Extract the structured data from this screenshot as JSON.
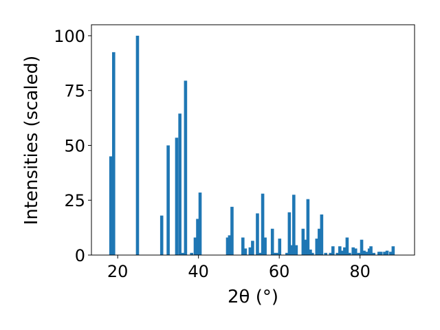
{
  "chart_data": {
    "type": "bar",
    "xlabel": "2θ (°)",
    "ylabel": "Intensities (scaled)",
    "xlim": [
      13.5,
      93.5
    ],
    "ylim": [
      0,
      105
    ],
    "xticks": [
      20,
      40,
      60,
      80
    ],
    "yticks": [
      0,
      25,
      50,
      75,
      100
    ],
    "bar_color": "#1f77b4",
    "grid": false,
    "bars": [
      {
        "x": 18.3,
        "y": 45
      },
      {
        "x": 19.0,
        "y": 92.5
      },
      {
        "x": 24.9,
        "y": 100
      },
      {
        "x": 30.9,
        "y": 18
      },
      {
        "x": 32.5,
        "y": 50
      },
      {
        "x": 34.6,
        "y": 53.5
      },
      {
        "x": 35.4,
        "y": 64.5
      },
      {
        "x": 36.1,
        "y": 1
      },
      {
        "x": 36.8,
        "y": 79.5
      },
      {
        "x": 38.3,
        "y": 1
      },
      {
        "x": 39.2,
        "y": 8
      },
      {
        "x": 39.8,
        "y": 16.5
      },
      {
        "x": 40.4,
        "y": 28.5
      },
      {
        "x": 47.2,
        "y": 8
      },
      {
        "x": 47.7,
        "y": 9
      },
      {
        "x": 48.3,
        "y": 22
      },
      {
        "x": 51.0,
        "y": 8
      },
      {
        "x": 51.6,
        "y": 3
      },
      {
        "x": 52.8,
        "y": 3.5
      },
      {
        "x": 53.4,
        "y": 6.5
      },
      {
        "x": 54.6,
        "y": 19
      },
      {
        "x": 55.3,
        "y": 1
      },
      {
        "x": 55.9,
        "y": 28
      },
      {
        "x": 56.5,
        "y": 8
      },
      {
        "x": 58.3,
        "y": 12
      },
      {
        "x": 58.9,
        "y": 1
      },
      {
        "x": 59.5,
        "y": 1
      },
      {
        "x": 60.1,
        "y": 7.5
      },
      {
        "x": 61.9,
        "y": 1
      },
      {
        "x": 62.5,
        "y": 19.5
      },
      {
        "x": 63.1,
        "y": 4.5
      },
      {
        "x": 63.6,
        "y": 27.5
      },
      {
        "x": 64.2,
        "y": 4.5
      },
      {
        "x": 65.9,
        "y": 12
      },
      {
        "x": 66.5,
        "y": 7
      },
      {
        "x": 67.1,
        "y": 25.5
      },
      {
        "x": 67.7,
        "y": 2.5
      },
      {
        "x": 68.2,
        "y": 1
      },
      {
        "x": 69.3,
        "y": 7.5
      },
      {
        "x": 69.9,
        "y": 12
      },
      {
        "x": 70.5,
        "y": 18.5
      },
      {
        "x": 71.5,
        "y": 1
      },
      {
        "x": 72.7,
        "y": 1
      },
      {
        "x": 73.3,
        "y": 4
      },
      {
        "x": 74.4,
        "y": 1
      },
      {
        "x": 75.0,
        "y": 4
      },
      {
        "x": 75.6,
        "y": 2
      },
      {
        "x": 76.2,
        "y": 3.5
      },
      {
        "x": 76.8,
        "y": 8
      },
      {
        "x": 77.4,
        "y": 1
      },
      {
        "x": 78.3,
        "y": 3.5
      },
      {
        "x": 78.9,
        "y": 3
      },
      {
        "x": 79.7,
        "y": 1
      },
      {
        "x": 80.4,
        "y": 7
      },
      {
        "x": 81.0,
        "y": 2
      },
      {
        "x": 81.6,
        "y": 1.5
      },
      {
        "x": 82.3,
        "y": 3
      },
      {
        "x": 82.7,
        "y": 4
      },
      {
        "x": 83.4,
        "y": 1
      },
      {
        "x": 84.7,
        "y": 1.5
      },
      {
        "x": 85.2,
        "y": 1.5
      },
      {
        "x": 86.1,
        "y": 1.5
      },
      {
        "x": 86.7,
        "y": 2
      },
      {
        "x": 87.6,
        "y": 1.5
      },
      {
        "x": 88.2,
        "y": 4
      }
    ]
  }
}
